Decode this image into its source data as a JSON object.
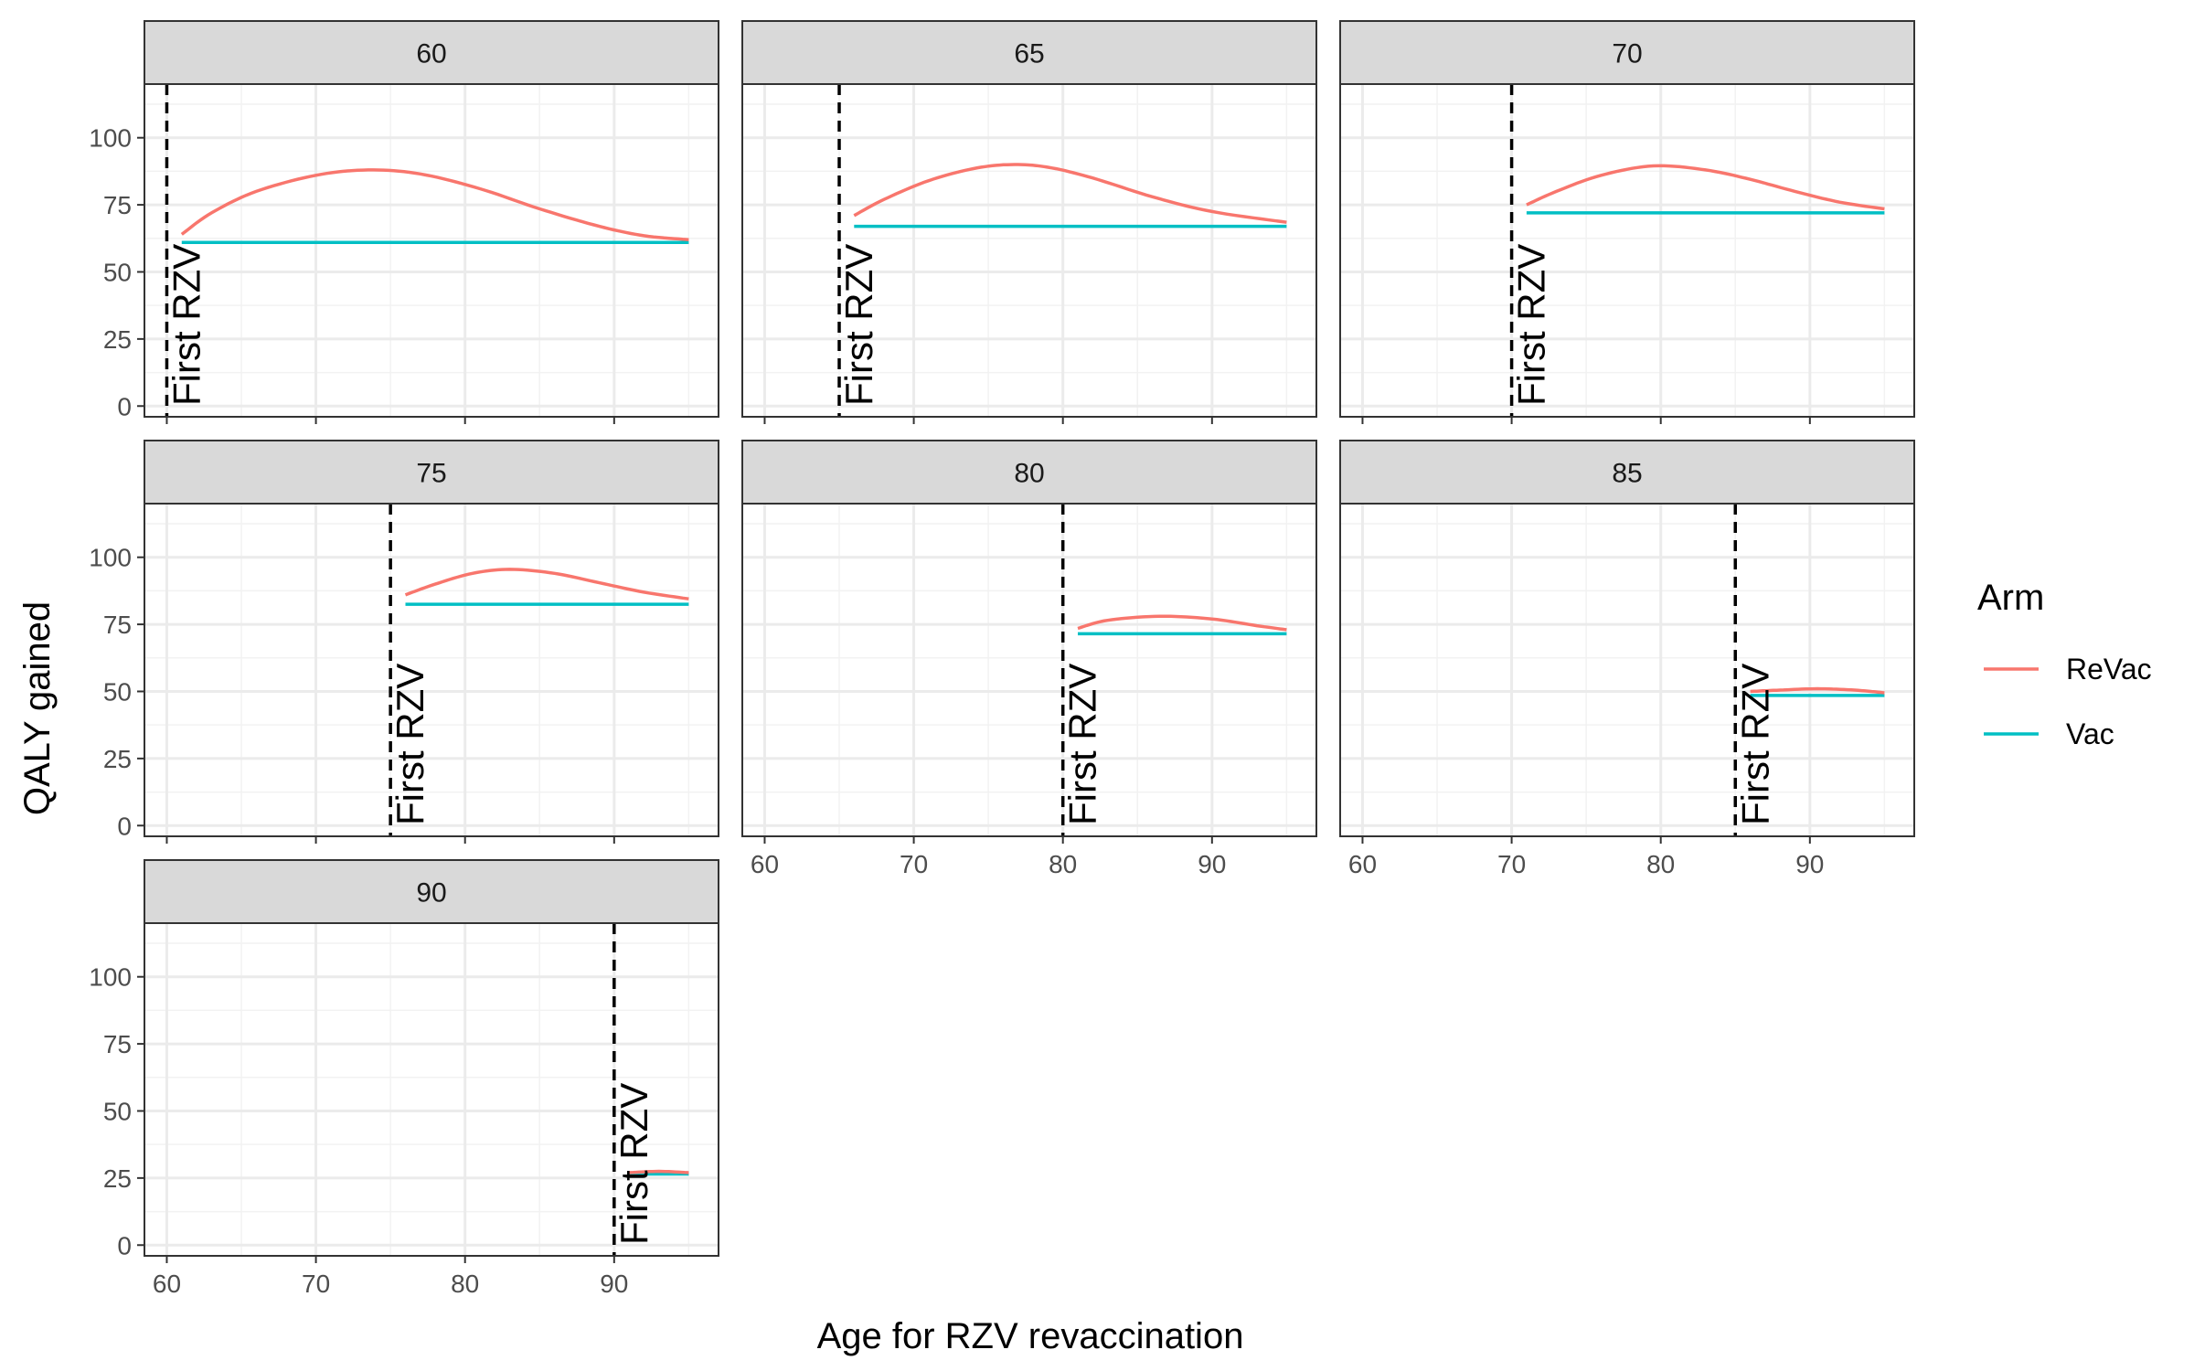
{
  "chart_data": {
    "type": "line",
    "xlabel": "Age for RZV revaccination",
    "ylabel": "QALY gained",
    "xlim": [
      58.5,
      97
    ],
    "ylim": [
      -4,
      120
    ],
    "x_ticks": [
      60,
      70,
      80,
      90
    ],
    "y_ticks": [
      0,
      25,
      50,
      75,
      100
    ],
    "grid": true,
    "legend": {
      "title": "Arm",
      "placement": "right",
      "entries": [
        {
          "name": "ReVac",
          "color": "#F8766D"
        },
        {
          "name": "Vac",
          "color": "#00BFC4"
        }
      ]
    },
    "vline_label": "First RZV",
    "facets": [
      {
        "label": "60",
        "first_rzv": 60,
        "ReVac": {
          "x": [
            61,
            63,
            66,
            70,
            73.5,
            77,
            81,
            85,
            89,
            92,
            95
          ],
          "y": [
            64,
            72,
            80,
            86,
            88,
            86.5,
            81,
            73.5,
            67,
            63.5,
            62
          ]
        },
        "Vac": {
          "x": [
            61,
            95
          ],
          "y": [
            61,
            61
          ]
        }
      },
      {
        "label": "65",
        "first_rzv": 65,
        "ReVac": {
          "x": [
            66,
            68,
            71,
            74,
            76.5,
            79,
            82,
            86,
            90,
            95
          ],
          "y": [
            71,
            77,
            84,
            88.5,
            90,
            89,
            85,
            78,
            72.5,
            68.5
          ]
        },
        "Vac": {
          "x": [
            66,
            95
          ],
          "y": [
            67,
            67
          ]
        }
      },
      {
        "label": "70",
        "first_rzv": 70,
        "ReVac": {
          "x": [
            71,
            73,
            76,
            79.5,
            83,
            86,
            89,
            92,
            95
          ],
          "y": [
            75,
            80,
            86,
            89.5,
            88,
            84.5,
            80,
            76,
            73.5
          ]
        },
        "Vac": {
          "x": [
            71,
            95
          ],
          "y": [
            72,
            72
          ]
        }
      },
      {
        "label": "75",
        "first_rzv": 75,
        "ReVac": {
          "x": [
            76,
            78,
            80.5,
            83,
            86,
            89,
            92,
            95
          ],
          "y": [
            86,
            90,
            94,
            95.5,
            94,
            90.5,
            87,
            84.5
          ]
        },
        "Vac": {
          "x": [
            76,
            95
          ],
          "y": [
            82.5,
            82.5
          ]
        }
      },
      {
        "label": "80",
        "first_rzv": 80,
        "ReVac": {
          "x": [
            81,
            83,
            86.5,
            90,
            93,
            95
          ],
          "y": [
            73.5,
            76.5,
            78,
            77,
            74.5,
            73
          ]
        },
        "Vac": {
          "x": [
            81,
            95
          ],
          "y": [
            71.5,
            71.5
          ]
        }
      },
      {
        "label": "85",
        "first_rzv": 85,
        "ReVac": {
          "x": [
            86,
            88,
            90.5,
            93,
            95
          ],
          "y": [
            50,
            50.5,
            51,
            50.5,
            49.5
          ]
        },
        "Vac": {
          "x": [
            86,
            95
          ],
          "y": [
            48.5,
            48.5
          ]
        }
      },
      {
        "label": "90",
        "first_rzv": 90,
        "ReVac": {
          "x": [
            91,
            93,
            95
          ],
          "y": [
            27,
            27.5,
            27
          ]
        },
        "Vac": {
          "x": [
            91,
            95
          ],
          "y": [
            26.5,
            26.5
          ]
        }
      }
    ]
  }
}
